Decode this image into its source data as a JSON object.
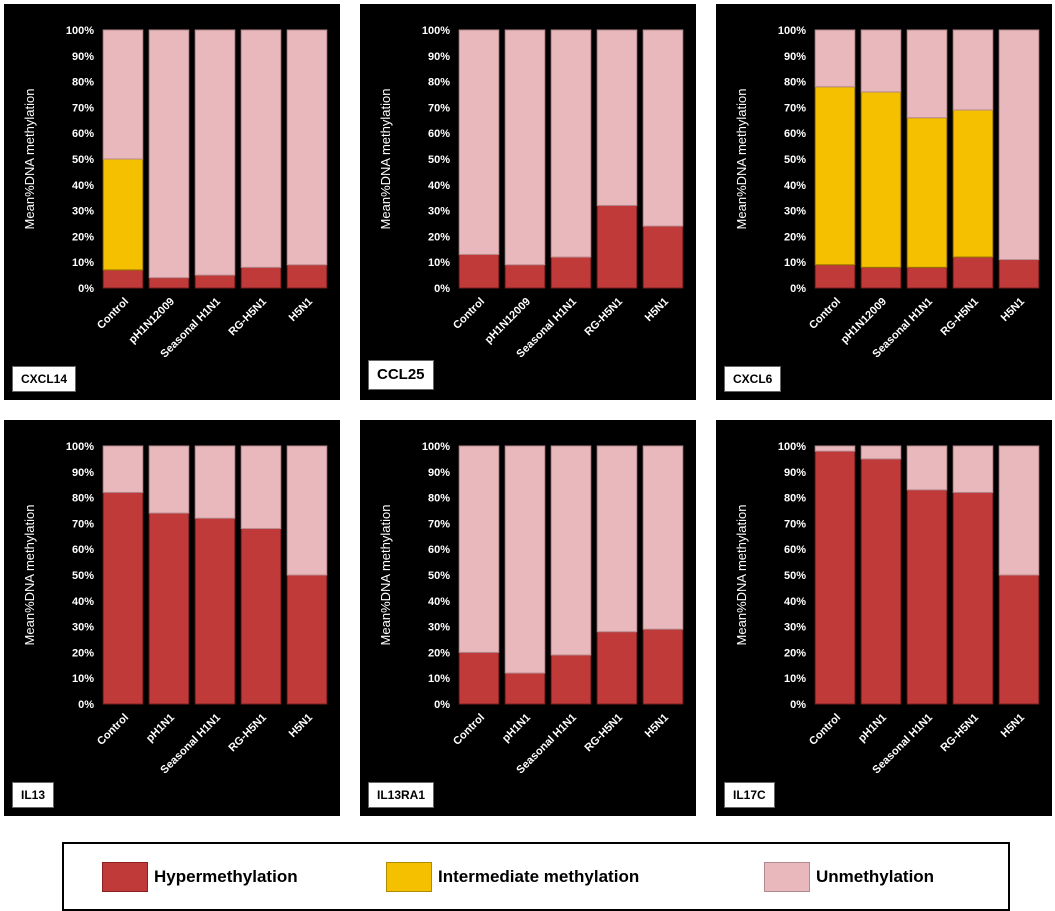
{
  "colors": {
    "hyper": "#c03a3a",
    "intermediate": "#f4c000",
    "unmethylated": "#e8b8bc",
    "background": "#000000"
  },
  "legend": {
    "hyper": "Hypermethylation",
    "intermediate": "Intermediate methylation",
    "unmethylated": "Unmethylation"
  },
  "chart_data": [
    {
      "type": "bar",
      "stacked": true,
      "gene": "CXCL14",
      "ylabel": "Mean%DNA methylation",
      "ylim": [
        0,
        100
      ],
      "yticks": [
        "0%",
        "10%",
        "20%",
        "30%",
        "40%",
        "50%",
        "60%",
        "70%",
        "80%",
        "90%",
        "100%"
      ],
      "categories": [
        "Control",
        "pH1N12009",
        "Seasonal H1N1",
        "RG-H5N1",
        "H5N1"
      ],
      "series": [
        {
          "name": "Hypermethylation",
          "values": [
            7,
            4,
            5,
            8,
            9
          ]
        },
        {
          "name": "Intermediate methylation",
          "values": [
            43,
            0,
            0,
            0,
            0
          ]
        },
        {
          "name": "Unmethylation",
          "values": [
            50,
            96,
            95,
            92,
            91
          ]
        }
      ]
    },
    {
      "type": "bar",
      "stacked": true,
      "gene": "CCL25",
      "ylabel": "Mean%DNA methylation",
      "ylim": [
        0,
        100
      ],
      "yticks": [
        "0%",
        "10%",
        "20%",
        "30%",
        "40%",
        "50%",
        "60%",
        "70%",
        "80%",
        "90%",
        "100%"
      ],
      "categories": [
        "Control",
        "pH1N12009",
        "Seasonal H1N1",
        "RG-H5N1",
        "H5N1"
      ],
      "series": [
        {
          "name": "Hypermethylation",
          "values": [
            13,
            9,
            12,
            32,
            24
          ]
        },
        {
          "name": "Intermediate methylation",
          "values": [
            0,
            0,
            0,
            0,
            0
          ]
        },
        {
          "name": "Unmethylation",
          "values": [
            87,
            91,
            88,
            68,
            76
          ]
        }
      ]
    },
    {
      "type": "bar",
      "stacked": true,
      "gene": "CXCL6",
      "ylabel": "Mean%DNA methylation",
      "ylim": [
        0,
        100
      ],
      "yticks": [
        "0%",
        "10%",
        "20%",
        "30%",
        "40%",
        "50%",
        "60%",
        "70%",
        "80%",
        "90%",
        "100%"
      ],
      "categories": [
        "Control",
        "pH1N12009",
        "Seasonal H1N1",
        "RG-H5N1",
        "H5N1"
      ],
      "series": [
        {
          "name": "Hypermethylation",
          "values": [
            9,
            8,
            8,
            12,
            11
          ]
        },
        {
          "name": "Intermediate methylation",
          "values": [
            69,
            68,
            58,
            57,
            0
          ]
        },
        {
          "name": "Unmethylation",
          "values": [
            22,
            24,
            34,
            31,
            89
          ]
        }
      ]
    },
    {
      "type": "bar",
      "stacked": true,
      "gene": "IL13",
      "ylabel": "Mean%DNA methylation",
      "ylim": [
        0,
        100
      ],
      "yticks": [
        "0%",
        "10%",
        "20%",
        "30%",
        "40%",
        "50%",
        "60%",
        "70%",
        "80%",
        "90%",
        "100%"
      ],
      "categories": [
        "Control",
        "pH1N1",
        "Seasonal H1N1",
        "RG-H5N1",
        "H5N1"
      ],
      "series": [
        {
          "name": "Hypermethylation",
          "values": [
            82,
            74,
            72,
            68,
            50
          ]
        },
        {
          "name": "Intermediate methylation",
          "values": [
            0,
            0,
            0,
            0,
            0
          ]
        },
        {
          "name": "Unmethylation",
          "values": [
            18,
            26,
            28,
            32,
            50
          ]
        }
      ]
    },
    {
      "type": "bar",
      "stacked": true,
      "gene": "IL13RA1",
      "ylabel": "Mean%DNA methylation",
      "ylim": [
        0,
        100
      ],
      "yticks": [
        "0%",
        "10%",
        "20%",
        "30%",
        "40%",
        "50%",
        "60%",
        "70%",
        "80%",
        "90%",
        "100%"
      ],
      "categories": [
        "Control",
        "pH1N1",
        "Seasonal H1N1",
        "RG-H5N1",
        "H5N1"
      ],
      "series": [
        {
          "name": "Hypermethylation",
          "values": [
            20,
            12,
            19,
            28,
            29
          ]
        },
        {
          "name": "Intermediate methylation",
          "values": [
            0,
            0,
            0,
            0,
            0
          ]
        },
        {
          "name": "Unmethylation",
          "values": [
            80,
            88,
            81,
            72,
            71
          ]
        }
      ]
    },
    {
      "type": "bar",
      "stacked": true,
      "gene": "IL17C",
      "ylabel": "Mean%DNA methylation",
      "ylim": [
        0,
        100
      ],
      "yticks": [
        "0%",
        "10%",
        "20%",
        "30%",
        "40%",
        "50%",
        "60%",
        "70%",
        "80%",
        "90%",
        "100%"
      ],
      "categories": [
        "Control",
        "pH1N1",
        "Seasonal H1N1",
        "RG-H5N1",
        "H5N1"
      ],
      "series": [
        {
          "name": "Hypermethylation",
          "values": [
            98,
            95,
            83,
            82,
            50
          ]
        },
        {
          "name": "Intermediate methylation",
          "values": [
            0,
            0,
            0,
            0,
            0
          ]
        },
        {
          "name": "Unmethylation",
          "values": [
            2,
            5,
            17,
            18,
            50
          ]
        }
      ]
    }
  ]
}
